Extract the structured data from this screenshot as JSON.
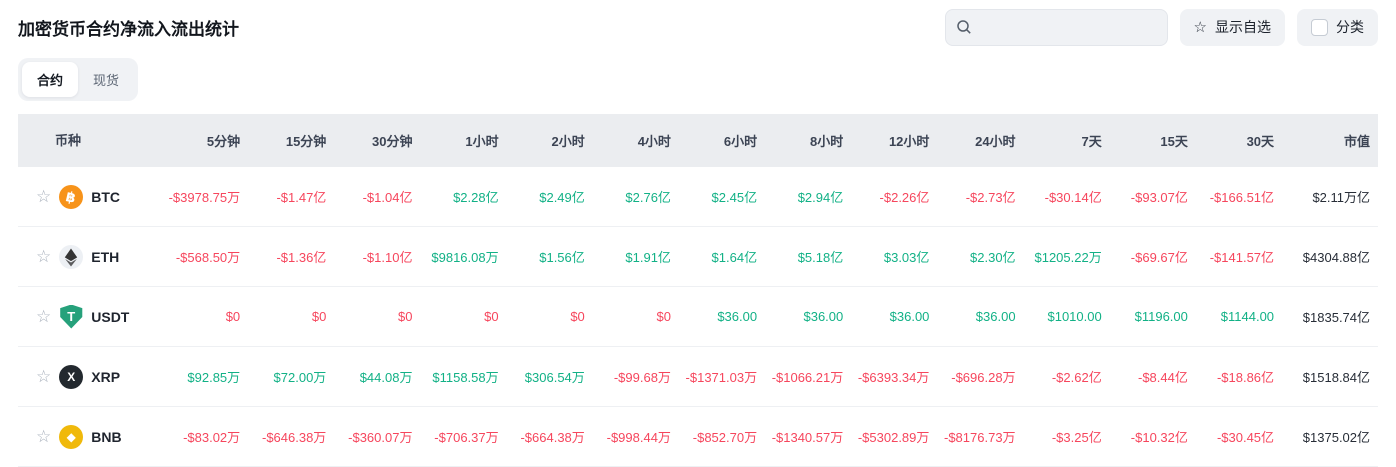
{
  "page": {
    "title": "加密货币合约净流入流出统计"
  },
  "toolbar": {
    "search": {
      "placeholder": "",
      "value": ""
    },
    "show_favorites": {
      "label": "显示自选"
    },
    "category": {
      "label": "分类",
      "checked": false
    }
  },
  "tabs": [
    {
      "label": "合约",
      "active": true
    },
    {
      "label": "现货",
      "active": false
    }
  ],
  "colors": {
    "positive": "#12b186",
    "negative": "#f6465d",
    "header_bg": "#ebedf0"
  },
  "table": {
    "columns": [
      "币种",
      "5分钟",
      "15分钟",
      "30分钟",
      "1小时",
      "2小时",
      "4小时",
      "6小时",
      "8小时",
      "12小时",
      "24小时",
      "7天",
      "15天",
      "30天",
      "市值"
    ],
    "rows": [
      {
        "symbol": "BTC",
        "icon": {
          "name": "btc-coin-icon",
          "type": "btc",
          "bg": "#f7931a",
          "fg": "#ffffff",
          "glyph": "฿"
        },
        "values": [
          {
            "text": "-$3978.75万",
            "tone": "neg"
          },
          {
            "text": "-$1.47亿",
            "tone": "neg"
          },
          {
            "text": "-$1.04亿",
            "tone": "neg"
          },
          {
            "text": "$2.28亿",
            "tone": "pos"
          },
          {
            "text": "$2.49亿",
            "tone": "pos"
          },
          {
            "text": "$2.76亿",
            "tone": "pos"
          },
          {
            "text": "$2.45亿",
            "tone": "pos"
          },
          {
            "text": "$2.94亿",
            "tone": "pos"
          },
          {
            "text": "-$2.26亿",
            "tone": "neg"
          },
          {
            "text": "-$2.73亿",
            "tone": "neg"
          },
          {
            "text": "-$30.14亿",
            "tone": "neg"
          },
          {
            "text": "-$93.07亿",
            "tone": "neg"
          },
          {
            "text": "-$166.51亿",
            "tone": "neg"
          }
        ],
        "market_cap": "$2.11万亿"
      },
      {
        "symbol": "ETH",
        "icon": {
          "name": "eth-coin-icon",
          "type": "eth",
          "bg": "#edf0f4",
          "fg": "#3b3b3d",
          "glyph": ""
        },
        "values": [
          {
            "text": "-$568.50万",
            "tone": "neg"
          },
          {
            "text": "-$1.36亿",
            "tone": "neg"
          },
          {
            "text": "-$1.10亿",
            "tone": "neg"
          },
          {
            "text": "$9816.08万",
            "tone": "pos"
          },
          {
            "text": "$1.56亿",
            "tone": "pos"
          },
          {
            "text": "$1.91亿",
            "tone": "pos"
          },
          {
            "text": "$1.64亿",
            "tone": "pos"
          },
          {
            "text": "$5.18亿",
            "tone": "pos"
          },
          {
            "text": "$3.03亿",
            "tone": "pos"
          },
          {
            "text": "$2.30亿",
            "tone": "pos"
          },
          {
            "text": "$1205.22万",
            "tone": "pos"
          },
          {
            "text": "-$69.67亿",
            "tone": "neg"
          },
          {
            "text": "-$141.57亿",
            "tone": "neg"
          }
        ],
        "market_cap": "$4304.88亿"
      },
      {
        "symbol": "USDT",
        "icon": {
          "name": "usdt-coin-icon",
          "type": "usdt",
          "bg": "#26a17b",
          "fg": "#ffffff",
          "glyph": "T"
        },
        "values": [
          {
            "text": "$0",
            "tone": "neg"
          },
          {
            "text": "$0",
            "tone": "neg"
          },
          {
            "text": "$0",
            "tone": "neg"
          },
          {
            "text": "$0",
            "tone": "neg"
          },
          {
            "text": "$0",
            "tone": "neg"
          },
          {
            "text": "$0",
            "tone": "neg"
          },
          {
            "text": "$36.00",
            "tone": "pos"
          },
          {
            "text": "$36.00",
            "tone": "pos"
          },
          {
            "text": "$36.00",
            "tone": "pos"
          },
          {
            "text": "$36.00",
            "tone": "pos"
          },
          {
            "text": "$1010.00",
            "tone": "pos"
          },
          {
            "text": "$1196.00",
            "tone": "pos"
          },
          {
            "text": "$1144.00",
            "tone": "pos"
          }
        ],
        "market_cap": "$1835.74亿"
      },
      {
        "symbol": "XRP",
        "icon": {
          "name": "xrp-coin-icon",
          "type": "xrp",
          "bg": "#23292f",
          "fg": "#ffffff",
          "glyph": "X"
        },
        "values": [
          {
            "text": "$92.85万",
            "tone": "pos"
          },
          {
            "text": "$72.00万",
            "tone": "pos"
          },
          {
            "text": "$44.08万",
            "tone": "pos"
          },
          {
            "text": "$1158.58万",
            "tone": "pos"
          },
          {
            "text": "$306.54万",
            "tone": "pos"
          },
          {
            "text": "-$99.68万",
            "tone": "neg"
          },
          {
            "text": "-$1371.03万",
            "tone": "neg"
          },
          {
            "text": "-$1066.21万",
            "tone": "neg"
          },
          {
            "text": "-$6393.34万",
            "tone": "neg"
          },
          {
            "text": "-$696.28万",
            "tone": "neg"
          },
          {
            "text": "-$2.62亿",
            "tone": "neg"
          },
          {
            "text": "-$8.44亿",
            "tone": "neg"
          },
          {
            "text": "-$18.86亿",
            "tone": "neg"
          }
        ],
        "market_cap": "$1518.84亿"
      },
      {
        "symbol": "BNB",
        "icon": {
          "name": "bnb-coin-icon",
          "type": "bnb",
          "bg": "#f0b90b",
          "fg": "#ffffff",
          "glyph": "◆"
        },
        "values": [
          {
            "text": "-$83.02万",
            "tone": "neg"
          },
          {
            "text": "-$646.38万",
            "tone": "neg"
          },
          {
            "text": "-$360.07万",
            "tone": "neg"
          },
          {
            "text": "-$706.37万",
            "tone": "neg"
          },
          {
            "text": "-$664.38万",
            "tone": "neg"
          },
          {
            "text": "-$998.44万",
            "tone": "neg"
          },
          {
            "text": "-$852.70万",
            "tone": "neg"
          },
          {
            "text": "-$1340.57万",
            "tone": "neg"
          },
          {
            "text": "-$5302.89万",
            "tone": "neg"
          },
          {
            "text": "-$8176.73万",
            "tone": "neg"
          },
          {
            "text": "-$3.25亿",
            "tone": "neg"
          },
          {
            "text": "-$10.32亿",
            "tone": "neg"
          },
          {
            "text": "-$30.45亿",
            "tone": "neg"
          }
        ],
        "market_cap": "$1375.02亿"
      }
    ]
  }
}
